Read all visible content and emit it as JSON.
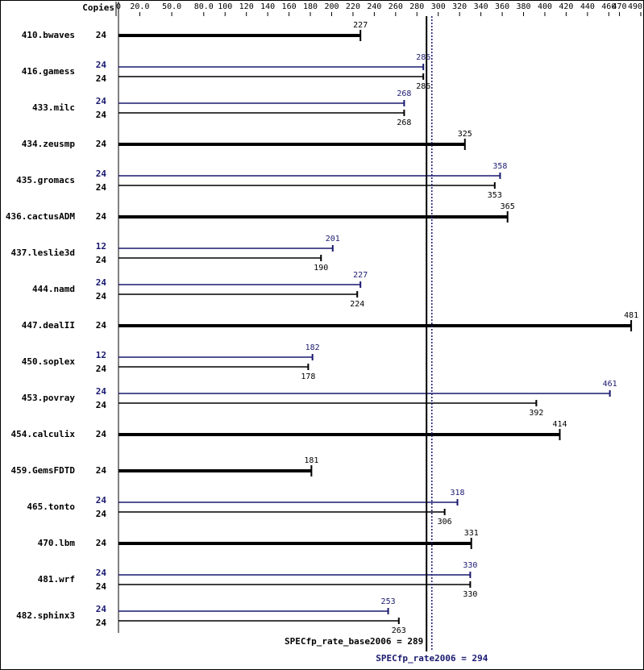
{
  "chart_data": {
    "type": "spec-bars",
    "copies_header": "Copies",
    "categories": [
      "410.bwaves",
      "416.gamess",
      "433.milc",
      "434.zeusmp",
      "435.gromacs",
      "436.cactusADM",
      "437.leslie3d",
      "444.namd",
      "447.dealII",
      "450.soplex",
      "453.povray",
      "454.calculix",
      "459.GemsFDTD",
      "465.tonto",
      "470.lbm",
      "481.wrf",
      "482.sphinx3"
    ],
    "base": {
      "color": "#000000",
      "copies": [
        24,
        24,
        24,
        24,
        24,
        24,
        24,
        24,
        24,
        24,
        24,
        24,
        24,
        24,
        24,
        24,
        24
      ],
      "values": [
        227,
        286,
        268,
        325,
        353,
        365,
        190,
        224,
        481,
        178,
        392,
        414,
        181,
        306,
        331,
        330,
        263
      ]
    },
    "peak": {
      "color": "#191970",
      "copies": [
        null,
        24,
        24,
        null,
        24,
        null,
        12,
        24,
        null,
        12,
        24,
        null,
        null,
        24,
        null,
        24,
        24
      ],
      "values": [
        null,
        286,
        268,
        null,
        358,
        null,
        201,
        227,
        null,
        182,
        461,
        null,
        null,
        318,
        null,
        330,
        253
      ]
    },
    "xlim": [
      0,
      490
    ],
    "xticks": [
      0,
      {
        "value": 20,
        "label": "20.0"
      },
      {
        "value": 50,
        "label": "50.0"
      },
      {
        "value": 80,
        "label": "80.0"
      },
      100,
      120,
      140,
      160,
      180,
      200,
      220,
      240,
      260,
      280,
      300,
      320,
      340,
      360,
      380,
      400,
      420,
      440,
      460,
      470,
      490
    ],
    "reference_lines": [
      {
        "label": "SPECfp_rate_base2006 = 289",
        "value": 289,
        "color": "#000000",
        "style": "solid"
      },
      {
        "label": "SPECfp_rate2006 = 294",
        "value": 294,
        "color": "#191970",
        "style": "dotted"
      }
    ]
  }
}
